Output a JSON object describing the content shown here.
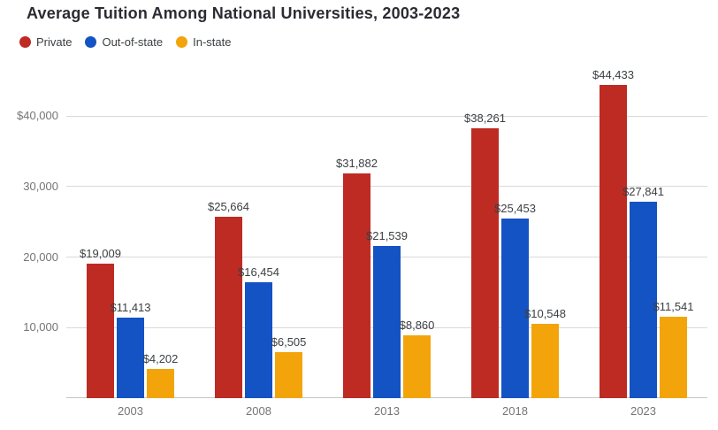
{
  "title": "Average Tuition Among National Universities, 2003-2023",
  "legend": {
    "items": [
      {
        "label": "Private",
        "color": "#be2b23"
      },
      {
        "label": "Out-of-state",
        "color": "#1353c4"
      },
      {
        "label": "In-state",
        "color": "#f3a40b"
      }
    ]
  },
  "colors": {
    "title_text": "#2b2b33",
    "legend_text": "#3c4043",
    "data_label_text": "#3c4043",
    "axis_text": "#757575",
    "gridline": "#d9d9d9",
    "baseline": "#c6c6c6",
    "background": "#ffffff",
    "private": "#be2b23",
    "out_of_state": "#1353c4",
    "in_state": "#f3a40b"
  },
  "chart_data": {
    "type": "bar",
    "title": "Average Tuition Among National Universities, 2003-2023",
    "categories": [
      "2003",
      "2008",
      "2013",
      "2018",
      "2023"
    ],
    "series": [
      {
        "name": "Private",
        "color": "#be2b23",
        "values": [
          19009,
          25664,
          31882,
          38261,
          44433
        ],
        "data_labels": [
          "$19,009",
          "$25,664",
          "$31,882",
          "$38,261",
          "$44,433"
        ]
      },
      {
        "name": "Out-of-state",
        "color": "#1353c4",
        "values": [
          11413,
          16454,
          21539,
          25453,
          27841
        ],
        "data_labels": [
          "$11,413",
          "$16,454",
          "$21,539",
          "$25,453",
          "$27,841"
        ]
      },
      {
        "name": "In-state",
        "color": "#f3a40b",
        "values": [
          4202,
          6505,
          8860,
          10548,
          11541
        ],
        "data_labels": [
          "$4,202",
          "$6,505",
          "$8,860",
          "$10,548",
          "$11,541"
        ]
      }
    ],
    "xlabel": "",
    "ylabel": "",
    "ylim": [
      0,
      45000
    ],
    "yticks": [
      {
        "value": 10000,
        "label": "10,000"
      },
      {
        "value": 20000,
        "label": "20,000"
      },
      {
        "value": 30000,
        "label": "30,000"
      },
      {
        "value": 40000,
        "label": "$40,000"
      }
    ],
    "grid": true,
    "legend_position": "top-left"
  }
}
